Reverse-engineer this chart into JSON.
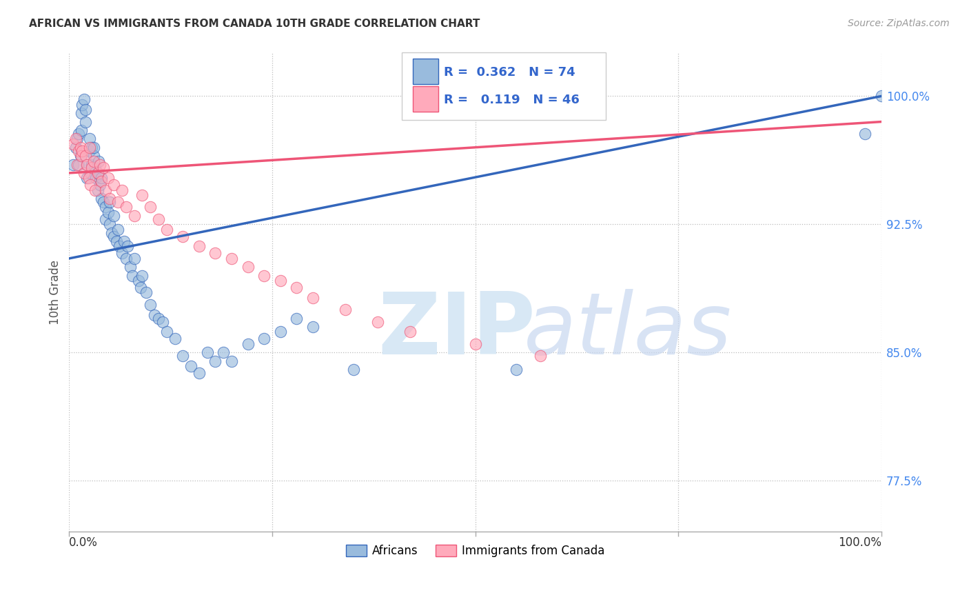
{
  "title": "AFRICAN VS IMMIGRANTS FROM CANADA 10TH GRADE CORRELATION CHART",
  "source": "Source: ZipAtlas.com",
  "ylabel": "10th Grade",
  "ytick_labels": [
    "77.5%",
    "85.0%",
    "92.5%",
    "100.0%"
  ],
  "ytick_values": [
    0.775,
    0.85,
    0.925,
    1.0
  ],
  "xlim": [
    0.0,
    1.0
  ],
  "ylim": [
    0.745,
    1.025
  ],
  "blue_color": "#99BBDD",
  "pink_color": "#FFAABB",
  "trendline_blue": "#3366BB",
  "trendline_pink": "#EE5577",
  "legend_r1_text": "R =  0.362   N = 74",
  "legend_r2_text": "R =   0.119   N = 46",
  "trendline_blue_start_y": 0.905,
  "trendline_blue_end_y": 1.0,
  "trendline_pink_start_y": 0.955,
  "trendline_pink_end_y": 0.985,
  "africans_x": [
    0.005,
    0.008,
    0.01,
    0.012,
    0.012,
    0.014,
    0.015,
    0.015,
    0.016,
    0.018,
    0.02,
    0.02,
    0.022,
    0.022,
    0.025,
    0.025,
    0.026,
    0.028,
    0.028,
    0.03,
    0.03,
    0.032,
    0.033,
    0.035,
    0.035,
    0.036,
    0.038,
    0.04,
    0.04,
    0.042,
    0.045,
    0.045,
    0.048,
    0.05,
    0.05,
    0.052,
    0.055,
    0.055,
    0.058,
    0.06,
    0.062,
    0.065,
    0.068,
    0.07,
    0.072,
    0.075,
    0.078,
    0.08,
    0.085,
    0.088,
    0.09,
    0.095,
    0.1,
    0.105,
    0.11,
    0.115,
    0.12,
    0.13,
    0.14,
    0.15,
    0.16,
    0.17,
    0.18,
    0.19,
    0.2,
    0.22,
    0.24,
    0.26,
    0.28,
    0.3,
    0.35,
    0.55,
    0.98,
    1.0
  ],
  "africans_y": [
    0.96,
    0.97,
    0.975,
    0.978,
    0.96,
    0.965,
    0.98,
    0.99,
    0.995,
    0.998,
    0.992,
    0.985,
    0.96,
    0.952,
    0.968,
    0.975,
    0.955,
    0.97,
    0.96,
    0.965,
    0.97,
    0.958,
    0.952,
    0.945,
    0.955,
    0.962,
    0.948,
    0.94,
    0.952,
    0.938,
    0.935,
    0.928,
    0.932,
    0.925,
    0.938,
    0.92,
    0.918,
    0.93,
    0.915,
    0.922,
    0.912,
    0.908,
    0.915,
    0.905,
    0.912,
    0.9,
    0.895,
    0.905,
    0.892,
    0.888,
    0.895,
    0.885,
    0.878,
    0.872,
    0.87,
    0.868,
    0.862,
    0.858,
    0.848,
    0.842,
    0.838,
    0.85,
    0.845,
    0.85,
    0.845,
    0.855,
    0.858,
    0.862,
    0.87,
    0.865,
    0.84,
    0.84,
    0.978,
    1.0
  ],
  "canada_x": [
    0.005,
    0.008,
    0.01,
    0.012,
    0.014,
    0.015,
    0.016,
    0.018,
    0.02,
    0.022,
    0.024,
    0.025,
    0.026,
    0.028,
    0.03,
    0.032,
    0.035,
    0.038,
    0.04,
    0.042,
    0.045,
    0.048,
    0.05,
    0.055,
    0.06,
    0.065,
    0.07,
    0.08,
    0.09,
    0.1,
    0.11,
    0.12,
    0.14,
    0.16,
    0.18,
    0.2,
    0.22,
    0.24,
    0.26,
    0.28,
    0.3,
    0.34,
    0.38,
    0.42,
    0.5,
    0.58
  ],
  "canada_y": [
    0.972,
    0.975,
    0.96,
    0.968,
    0.97,
    0.965,
    0.968,
    0.955,
    0.965,
    0.96,
    0.952,
    0.97,
    0.948,
    0.958,
    0.962,
    0.945,
    0.955,
    0.96,
    0.95,
    0.958,
    0.945,
    0.952,
    0.94,
    0.948,
    0.938,
    0.945,
    0.935,
    0.93,
    0.942,
    0.935,
    0.928,
    0.922,
    0.918,
    0.912,
    0.908,
    0.905,
    0.9,
    0.895,
    0.892,
    0.888,
    0.882,
    0.875,
    0.868,
    0.862,
    0.855,
    0.848
  ]
}
